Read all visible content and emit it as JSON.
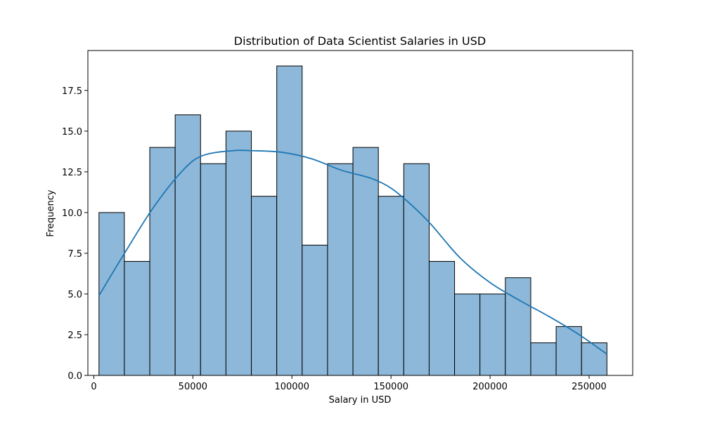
{
  "chart_data": {
    "type": "bar",
    "title": "Distribution of Data Scientist Salaries in USD",
    "xlabel": "Salary in USD",
    "ylabel": "Frequency",
    "xlim": [
      -3000,
      272000
    ],
    "ylim": [
      0,
      19.95
    ],
    "bin_edges": [
      2600,
      15420,
      28240,
      41060,
      53880,
      66700,
      79520,
      92340,
      105160,
      117980,
      130800,
      143620,
      156440,
      169260,
      182080,
      194900,
      207720,
      220540,
      233360,
      246180,
      259000
    ],
    "values": [
      10,
      7,
      14,
      16,
      13,
      15,
      11,
      19,
      8,
      13,
      14,
      11,
      13,
      7,
      5,
      5,
      6,
      2,
      3,
      2
    ],
    "x_ticks": [
      0,
      50000,
      100000,
      150000,
      200000,
      250000
    ],
    "x_tick_labels": [
      "0",
      "50000",
      "100000",
      "150000",
      "200000",
      "250000"
    ],
    "y_ticks": [
      0,
      2.5,
      5,
      7.5,
      10,
      12.5,
      15,
      17.5
    ],
    "y_tick_labels": [
      "0.0",
      "2.5",
      "5.0",
      "7.5",
      "10.0",
      "12.5",
      "15.0",
      "17.5"
    ],
    "kde": {
      "x": [
        2600,
        15000,
        30000,
        45000,
        55000,
        70000,
        80000,
        95000,
        110000,
        125000,
        140000,
        150000,
        160000,
        170000,
        185000,
        200000,
        215000,
        230000,
        245000,
        259000
      ],
      "y": [
        4.9,
        7.4,
        10.3,
        12.6,
        13.5,
        13.8,
        13.8,
        13.7,
        13.3,
        12.6,
        12.1,
        11.5,
        10.5,
        9.3,
        7.2,
        5.7,
        4.6,
        3.6,
        2.5,
        1.3
      ]
    },
    "colors": {
      "bar_fill": "#8db8d9",
      "kde_line": "#1f77b4"
    },
    "grid": false,
    "legend": "none"
  }
}
